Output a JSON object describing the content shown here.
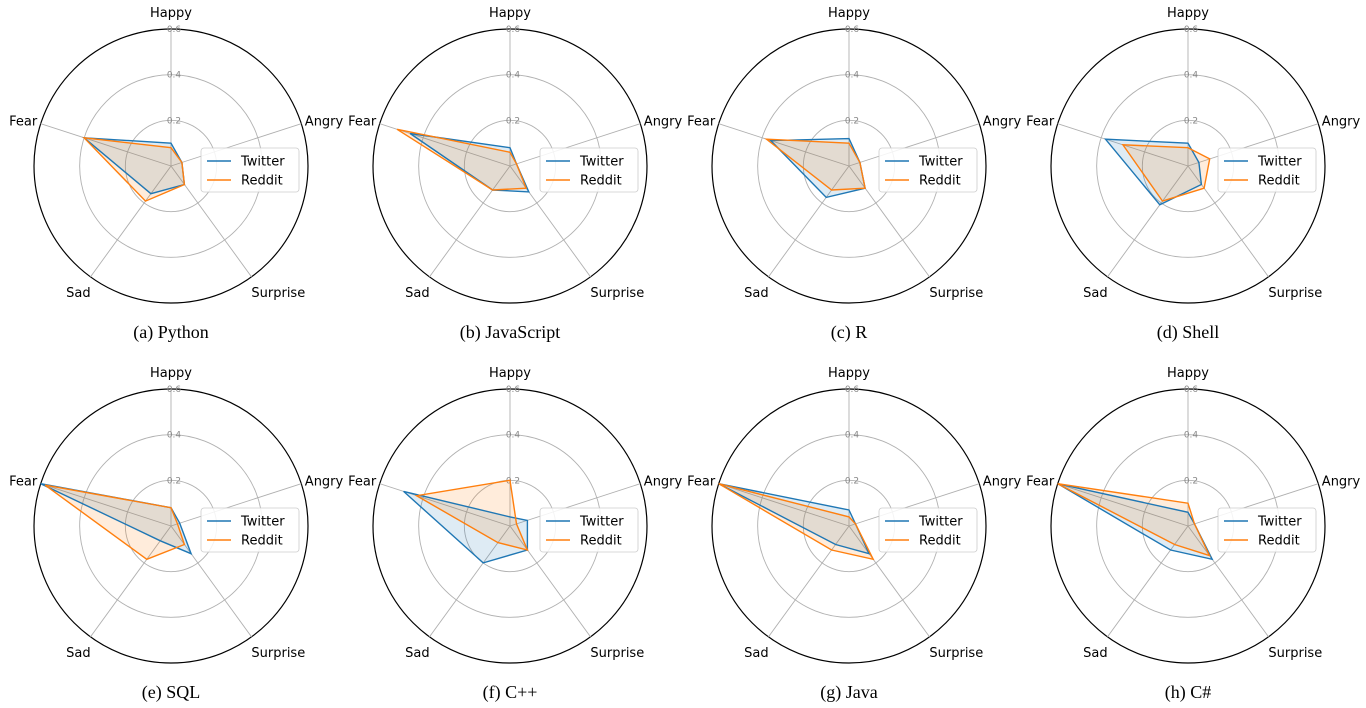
{
  "chart_data": [
    {
      "type": "radar",
      "caption": "(a) Python",
      "axes": [
        "Happy",
        "Angry",
        "Surprise",
        "Sad",
        "Fear"
      ],
      "rlim": [
        0,
        0.6
      ],
      "rticks": [
        "0.2",
        "0.4",
        "0.6"
      ],
      "legend": "right",
      "series": [
        {
          "name": "Twitter",
          "values": [
            0.1,
            0.05,
            0.1,
            0.15,
            0.4
          ]
        },
        {
          "name": "Reddit",
          "values": [
            0.08,
            0.05,
            0.1,
            0.19,
            0.4
          ]
        }
      ]
    },
    {
      "type": "radar",
      "caption": "(b) JavaScript",
      "axes": [
        "Happy",
        "Angry",
        "Surprise",
        "Sad",
        "Fear"
      ],
      "rlim": [
        0,
        0.6
      ],
      "rticks": [
        "0.2",
        "0.4",
        "0.6"
      ],
      "legend": "right",
      "series": [
        {
          "name": "Twitter",
          "values": [
            0.08,
            0.03,
            0.14,
            0.13,
            0.46
          ]
        },
        {
          "name": "Reddit",
          "values": [
            0.06,
            0.03,
            0.12,
            0.13,
            0.52
          ]
        }
      ]
    },
    {
      "type": "radar",
      "caption": "(c) R",
      "axes": [
        "Happy",
        "Angry",
        "Surprise",
        "Sad",
        "Fear"
      ],
      "rlim": [
        0,
        0.6
      ],
      "rticks": [
        "0.2",
        "0.4",
        "0.6"
      ],
      "legend": "right",
      "series": [
        {
          "name": "Twitter",
          "values": [
            0.12,
            0.05,
            0.12,
            0.17,
            0.36
          ]
        },
        {
          "name": "Reddit",
          "values": [
            0.1,
            0.05,
            0.12,
            0.13,
            0.38
          ]
        }
      ]
    },
    {
      "type": "radar",
      "caption": "(d) Shell",
      "axes": [
        "Happy",
        "Angry",
        "Surprise",
        "Sad",
        "Fear"
      ],
      "rlim": [
        0,
        0.6
      ],
      "rticks": [
        "0.2",
        "0.4",
        "0.6"
      ],
      "legend": "right",
      "series": [
        {
          "name": "Twitter",
          "values": [
            0.1,
            0.05,
            0.1,
            0.21,
            0.38
          ]
        },
        {
          "name": "Reddit",
          "values": [
            0.08,
            0.1,
            0.12,
            0.19,
            0.3
          ]
        }
      ]
    },
    {
      "type": "radar",
      "caption": "(e) SQL",
      "axes": [
        "Happy",
        "Angry",
        "Surprise",
        "Sad",
        "Fear"
      ],
      "rlim": [
        0,
        0.6
      ],
      "rticks": [
        "0.2",
        "0.4",
        "0.6"
      ],
      "legend": "right",
      "series": [
        {
          "name": "Twitter",
          "values": [
            0.08,
            0.04,
            0.15,
            0.08,
            0.6
          ]
        },
        {
          "name": "Reddit",
          "values": [
            0.08,
            0.03,
            0.1,
            0.18,
            0.58
          ]
        }
      ]
    },
    {
      "type": "radar",
      "caption": "(f) C++",
      "axes": [
        "Happy",
        "Angry",
        "Surprise",
        "Sad",
        "Fear"
      ],
      "rlim": [
        0,
        0.6
      ],
      "rticks": [
        "0.2",
        "0.4",
        "0.6"
      ],
      "legend": "right",
      "series": [
        {
          "name": "Twitter",
          "values": [
            0.04,
            0.08,
            0.13,
            0.2,
            0.49
          ]
        },
        {
          "name": "Reddit",
          "values": [
            0.2,
            0.03,
            0.13,
            0.09,
            0.43
          ]
        }
      ]
    },
    {
      "type": "radar",
      "caption": "(g) Java",
      "axes": [
        "Happy",
        "Angry",
        "Surprise",
        "Sad",
        "Fear"
      ],
      "rlim": [
        0,
        0.6
      ],
      "rticks": [
        "0.2",
        "0.4",
        "0.6"
      ],
      "legend": "right",
      "series": [
        {
          "name": "Twitter",
          "values": [
            0.07,
            0.03,
            0.15,
            0.1,
            0.6
          ]
        },
        {
          "name": "Reddit",
          "values": [
            0.04,
            0.03,
            0.18,
            0.13,
            0.6
          ]
        }
      ]
    },
    {
      "type": "radar",
      "caption": "(h) C#",
      "axes": [
        "Happy",
        "Angry",
        "Surprise",
        "Sad",
        "Fear"
      ],
      "rlim": [
        0,
        0.6
      ],
      "rticks": [
        "0.2",
        "0.4",
        "0.6"
      ],
      "legend": "right",
      "series": [
        {
          "name": "Twitter",
          "values": [
            0.06,
            0.03,
            0.18,
            0.13,
            0.6
          ]
        },
        {
          "name": "Reddit",
          "values": [
            0.1,
            0.03,
            0.16,
            0.1,
            0.6
          ]
        }
      ]
    }
  ],
  "colors": {
    "Twitter": "#1f77b4",
    "Reddit": "#ff7f0e",
    "overlap_fill": "#dcb6dc",
    "grid": "#b0b0b0",
    "outer_circle": "#000000"
  }
}
